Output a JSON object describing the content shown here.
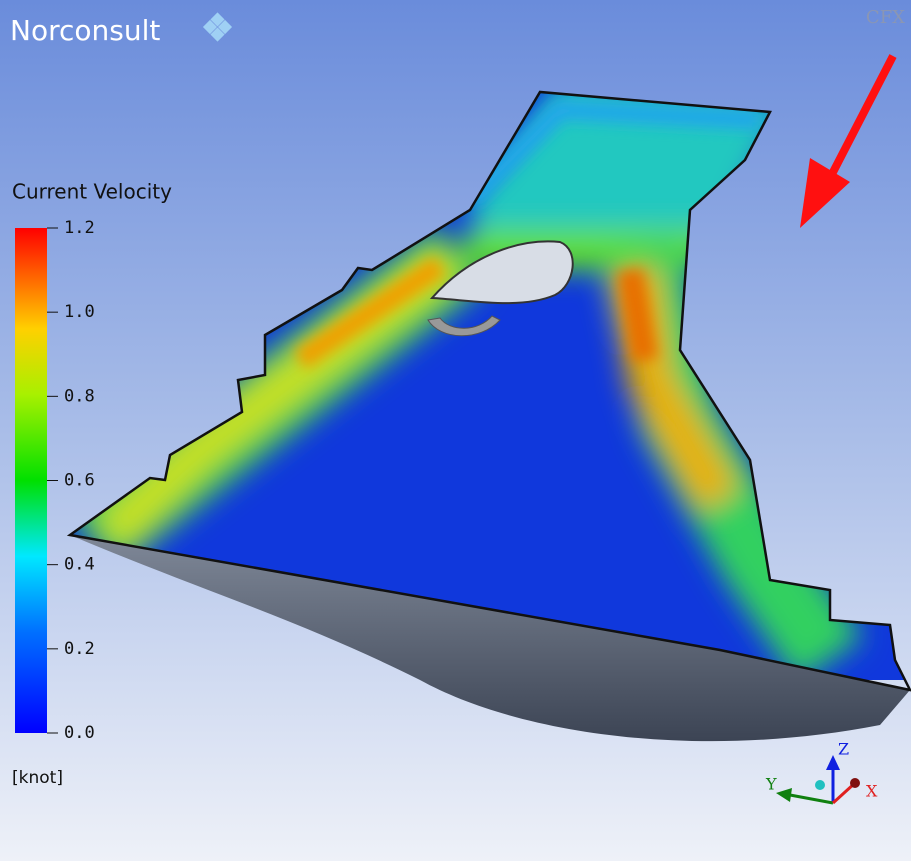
{
  "logo": {
    "text": "Norconsult"
  },
  "watermark": "CFX",
  "legend": {
    "title": "Current Velocity",
    "range": [
      0,
      1.2
    ],
    "ticks": [
      {
        "value": 0,
        "label": "0.0"
      },
      0.2,
      0.4,
      0.6,
      0.8,
      {
        "value": 1,
        "label": "1.0"
      },
      1.2
    ],
    "unit": "[knot]"
  },
  "axes_triad": {
    "z": "Z",
    "y": "Y",
    "x": "X"
  }
}
